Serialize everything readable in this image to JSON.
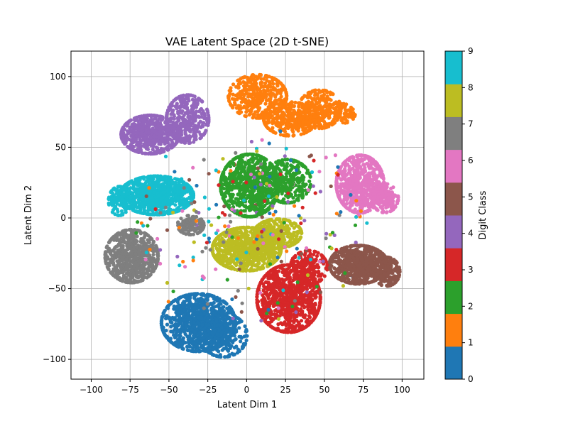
{
  "chart_data": {
    "type": "scatter",
    "title": "VAE Latent Space (2D t-SNE)",
    "xlabel": "Latent Dim 1",
    "ylabel": "Latent Dim 2",
    "xlim": [
      -113,
      114
    ],
    "ylim": [
      -114,
      118
    ],
    "xticks": [
      -100,
      -75,
      -50,
      -25,
      0,
      25,
      50,
      75,
      100
    ],
    "yticks": [
      -100,
      -50,
      0,
      50,
      100
    ],
    "grid": true,
    "colorbar": {
      "label": "Digit Class",
      "min": 0,
      "max": 9,
      "ticks": [
        0,
        1,
        2,
        3,
        4,
        5,
        6,
        7,
        8,
        9
      ],
      "colors": [
        "#1f77b4",
        "#ff7f0e",
        "#2ca02c",
        "#d62728",
        "#9467bd",
        "#8c564b",
        "#e377c2",
        "#7f7f7f",
        "#bcbd22",
        "#17becf"
      ]
    },
    "series": [
      {
        "class": 0,
        "color": "#1f77b4",
        "clusters": [
          {
            "cx": -31,
            "cy": -74,
            "sx": 14,
            "sy": 12,
            "n": 900
          },
          {
            "cx": -15,
            "cy": -83,
            "sx": 9,
            "sy": 9,
            "n": 260
          }
        ]
      },
      {
        "class": 1,
        "color": "#ff7f0e",
        "clusters": [
          {
            "cx": 7,
            "cy": 86,
            "sx": 11,
            "sy": 9,
            "n": 380
          },
          {
            "cx": 28,
            "cy": 70,
            "sx": 10,
            "sy": 7,
            "n": 300
          },
          {
            "cx": 47,
            "cy": 77,
            "sx": 8,
            "sy": 8,
            "n": 260
          },
          {
            "cx": 63,
            "cy": 74,
            "sx": 4,
            "sy": 4,
            "n": 70
          }
        ]
      },
      {
        "class": 2,
        "color": "#2ca02c",
        "clusters": [
          {
            "cx": 2,
            "cy": 23,
            "sx": 11,
            "sy": 13,
            "n": 800
          },
          {
            "cx": 26,
            "cy": 26,
            "sx": 9,
            "sy": 9,
            "n": 300
          }
        ]
      },
      {
        "class": 3,
        "color": "#d62728",
        "clusters": [
          {
            "cx": 27,
            "cy": -57,
            "sx": 12,
            "sy": 14,
            "n": 900
          },
          {
            "cx": 40,
            "cy": -35,
            "sx": 7,
            "sy": 7,
            "n": 200
          }
        ]
      },
      {
        "class": 4,
        "color": "#9467bd",
        "clusters": [
          {
            "cx": -62,
            "cy": 59,
            "sx": 11,
            "sy": 8,
            "n": 600
          },
          {
            "cx": -38,
            "cy": 70,
            "sx": 8,
            "sy": 10,
            "n": 350
          }
        ]
      },
      {
        "class": 5,
        "color": "#8c564b",
        "clusters": [
          {
            "cx": 72,
            "cy": -33,
            "sx": 11,
            "sy": 8,
            "n": 700
          },
          {
            "cx": 90,
            "cy": -38,
            "sx": 5,
            "sy": 6,
            "n": 160
          }
        ]
      },
      {
        "class": 6,
        "color": "#e377c2",
        "clusters": [
          {
            "cx": 73,
            "cy": 24,
            "sx": 9,
            "sy": 12,
            "n": 700
          },
          {
            "cx": 89,
            "cy": 14,
            "sx": 5,
            "sy": 6,
            "n": 180
          }
        ]
      },
      {
        "class": 7,
        "color": "#7f7f7f",
        "clusters": [
          {
            "cx": -74,
            "cy": -27,
            "sx": 10,
            "sy": 11,
            "n": 700
          },
          {
            "cx": -36,
            "cy": -5,
            "sx": 5,
            "sy": 4,
            "n": 120
          }
        ]
      },
      {
        "class": 8,
        "color": "#bcbd22",
        "clusters": [
          {
            "cx": 0,
            "cy": -22,
            "sx": 13,
            "sy": 9,
            "n": 900
          },
          {
            "cx": 20,
            "cy": -11,
            "sx": 9,
            "sy": 6,
            "n": 300
          }
        ]
      },
      {
        "class": 9,
        "color": "#17becf",
        "clusters": [
          {
            "cx": -58,
            "cy": 16,
            "sx": 14,
            "sy": 8,
            "n": 900
          },
          {
            "cx": -82,
            "cy": 12,
            "sx": 4,
            "sy": 6,
            "n": 120
          }
        ]
      }
    ]
  }
}
